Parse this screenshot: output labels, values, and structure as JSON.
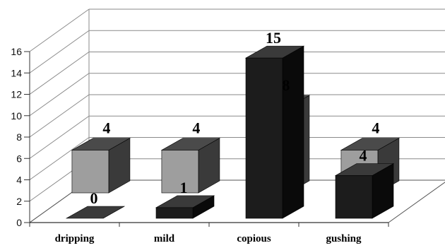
{
  "chart_data": {
    "type": "bar",
    "title": "",
    "xlabel": "",
    "ylabel": "",
    "categories": [
      "dripping",
      "mild",
      "copious",
      "gushing"
    ],
    "ylim": [
      0,
      16
    ],
    "yticks": [
      0,
      2,
      4,
      6,
      8,
      10,
      12,
      14,
      16
    ],
    "grid": true,
    "legend": "none",
    "style": "3d-clustered",
    "series": [
      {
        "values": [
          0,
          1,
          15,
          4
        ],
        "color": "#1c1c1c"
      },
      {
        "values": [
          4,
          4,
          8,
          4
        ],
        "color": "#9e9e9e"
      }
    ]
  }
}
